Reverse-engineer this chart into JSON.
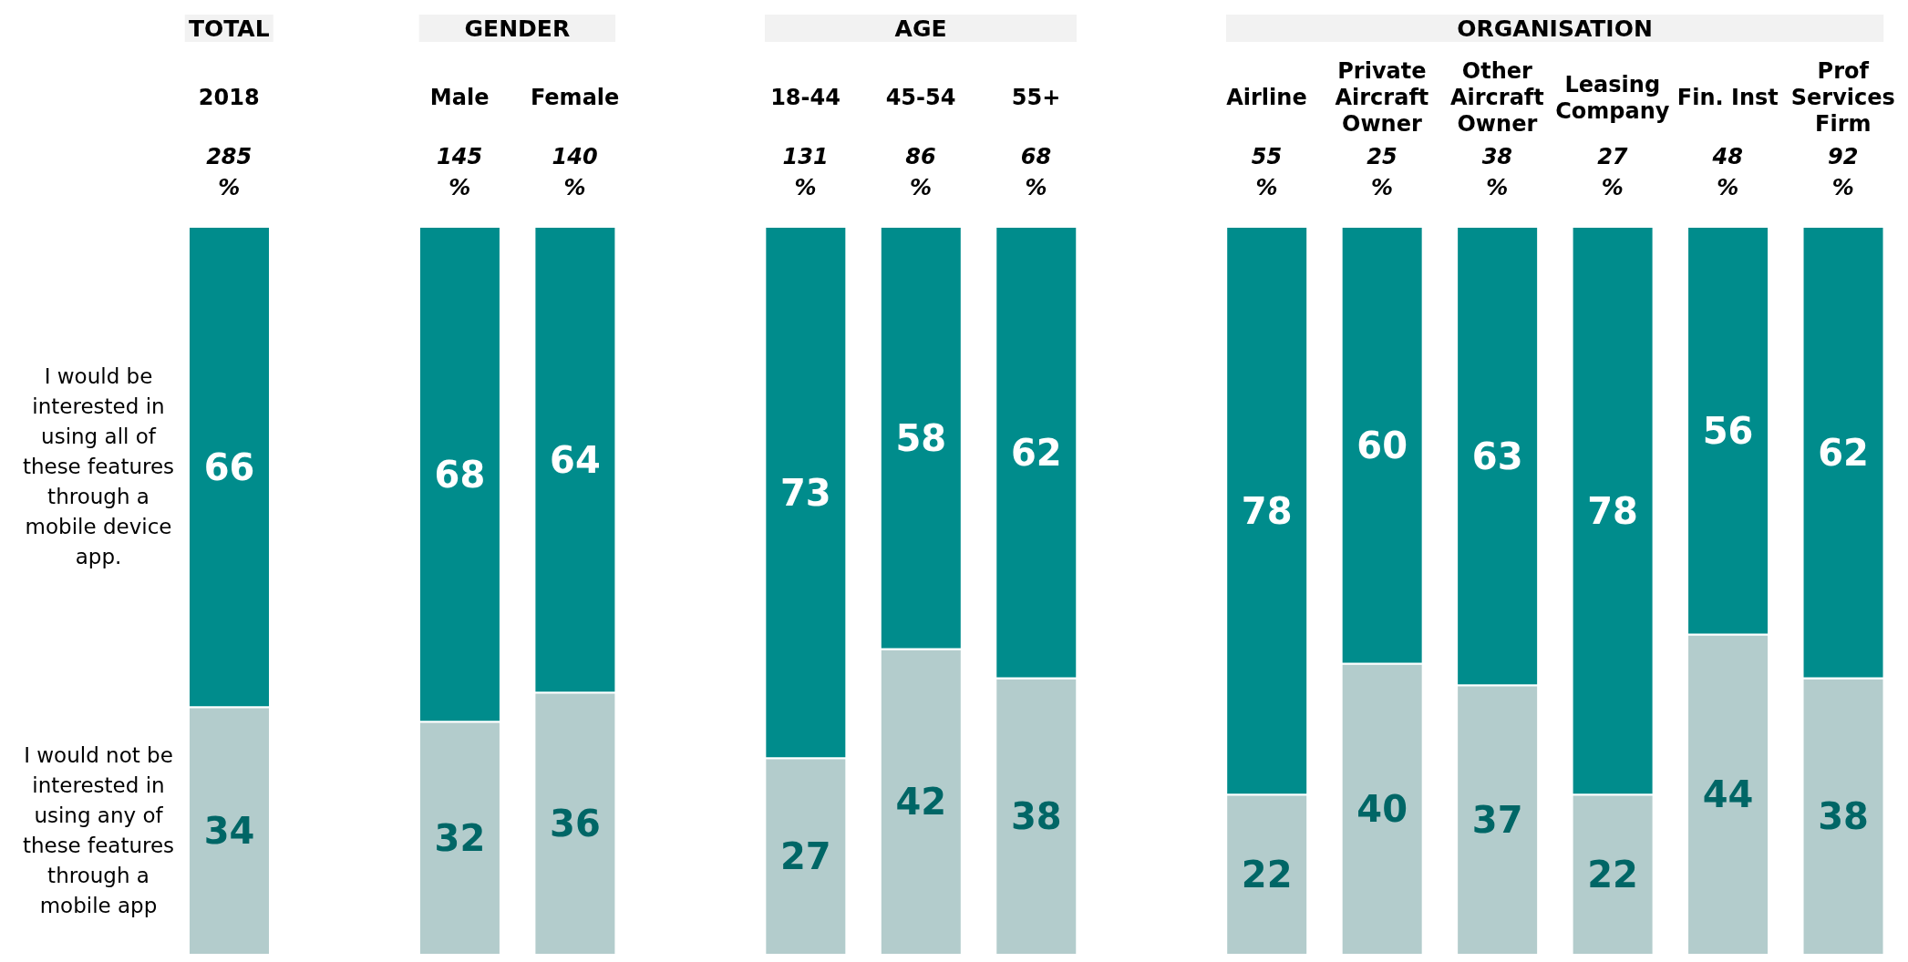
{
  "chart_data": {
    "type": "bar",
    "stacked": true,
    "data_labels": true,
    "legend": "left",
    "categories": [
      "2018",
      null,
      "Male",
      "Female",
      null,
      "18-44",
      "45-54",
      "55+",
      null,
      "Airline",
      "Private Aircraft Owner",
      "Other Aircraft Owner",
      "Leasing Company",
      "Fin. Inst",
      "Prof Services Firm"
    ],
    "series": [
      {
        "name": "I would not be interested in using any of these features through a mobile app",
        "color": "#b3cccc",
        "values": [
          34,
          null,
          32,
          36,
          null,
          27,
          42,
          38,
          null,
          22,
          40,
          37,
          22,
          44,
          38
        ]
      },
      {
        "name": "I would be interested in using all of these features through a mobile device app.",
        "color": "#008c8c",
        "values": [
          66,
          null,
          68,
          64,
          null,
          73,
          58,
          62,
          null,
          78,
          60,
          63,
          78,
          56,
          62
        ]
      }
    ],
    "annotations": [
      "TOTAL",
      "GENDER",
      "AGE",
      "ORGANISATION",
      {
        "text": "285 %",
        "x": "2018",
        "y": 100
      },
      {
        "text": "145 %",
        "x": "Male",
        "y": 100
      },
      {
        "text": "140 %",
        "x": "Female",
        "y": 100
      },
      {
        "text": "131 %",
        "x": "18-44",
        "y": 100
      },
      {
        "text": "86 %",
        "x": "45-54",
        "y": 100
      },
      {
        "text": "68 %",
        "x": "55+",
        "y": 100
      },
      {
        "text": "55 %",
        "x": "Airline",
        "y": 100
      },
      {
        "text": "25 %",
        "x": "Private Aircraft Owner",
        "y": 100
      },
      {
        "text": "38 %",
        "x": "Other Aircraft Owner",
        "y": 100
      },
      {
        "text": "27 %",
        "x": "Leasing Company",
        "y": 100
      },
      {
        "text": "48 %",
        "x": "Fin. Inst",
        "y": 100
      },
      {
        "text": "92 %",
        "x": "Prof Services Firm",
        "y": 100
      }
    ]
  }
}
